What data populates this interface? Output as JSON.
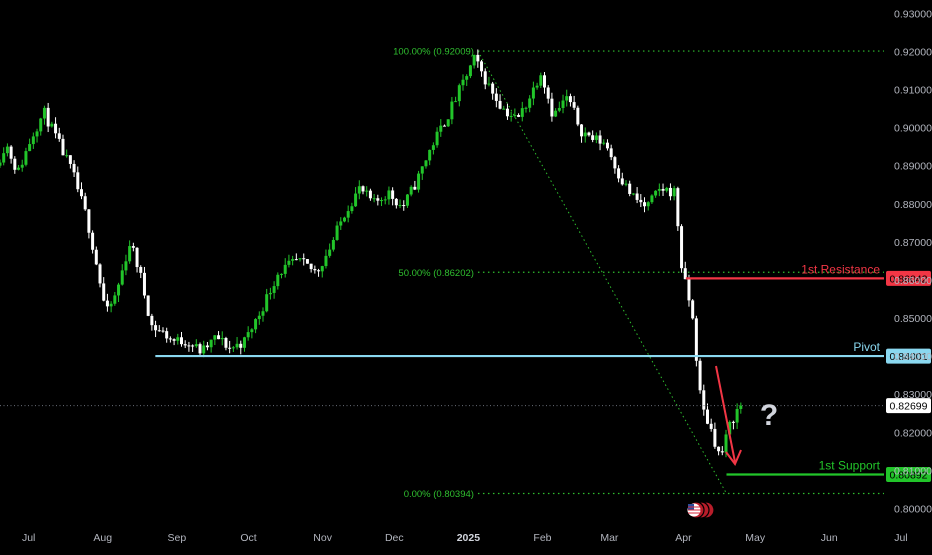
{
  "chart_data": {
    "type": "candlestick",
    "y_axis": {
      "ticks": [
        "0.93000",
        "0.92000",
        "0.91000",
        "0.90000",
        "0.89000",
        "0.88000",
        "0.87000",
        "0.86000",
        "0.85000",
        "0.84000",
        "0.83000",
        "0.82000",
        "0.81000",
        "0.80000"
      ],
      "range": [
        0.7975,
        0.9335
      ]
    },
    "x_axis": {
      "ticks": [
        {
          "label": "Jul",
          "day": 0
        },
        {
          "label": "Aug",
          "day": 31
        },
        {
          "label": "Sep",
          "day": 62
        },
        {
          "label": "Oct",
          "day": 92
        },
        {
          "label": "Nov",
          "day": 123
        },
        {
          "label": "Dec",
          "day": 153
        },
        {
          "label": "2025",
          "day": 184
        },
        {
          "label": "Feb",
          "day": 215
        },
        {
          "label": "Mar",
          "day": 243
        },
        {
          "label": "Apr",
          "day": 274
        },
        {
          "label": "May",
          "day": 304
        },
        {
          "label": "Jun",
          "day": 335
        },
        {
          "label": "Jul",
          "day": 365
        }
      ],
      "range": [
        -12,
        378
      ]
    },
    "price_path": [
      [
        -12,
        0.89
      ],
      [
        -8,
        0.896
      ],
      [
        -3,
        0.888
      ],
      [
        3,
        0.898
      ],
      [
        8,
        0.904
      ],
      [
        14,
        0.896
      ],
      [
        20,
        0.888
      ],
      [
        26,
        0.876
      ],
      [
        30,
        0.864
      ],
      [
        34,
        0.851
      ],
      [
        38,
        0.856
      ],
      [
        44,
        0.87
      ],
      [
        48,
        0.862
      ],
      [
        53,
        0.848
      ],
      [
        58,
        0.846
      ],
      [
        62,
        0.844
      ],
      [
        68,
        0.844
      ],
      [
        74,
        0.841
      ],
      [
        80,
        0.845
      ],
      [
        86,
        0.842
      ],
      [
        92,
        0.844
      ],
      [
        98,
        0.851
      ],
      [
        106,
        0.862
      ],
      [
        114,
        0.865
      ],
      [
        122,
        0.862
      ],
      [
        128,
        0.869
      ],
      [
        134,
        0.878
      ],
      [
        140,
        0.884
      ],
      [
        146,
        0.88
      ],
      [
        152,
        0.883
      ],
      [
        158,
        0.879
      ],
      [
        164,
        0.886
      ],
      [
        170,
        0.895
      ],
      [
        176,
        0.902
      ],
      [
        182,
        0.91
      ],
      [
        188,
        0.918
      ],
      [
        194,
        0.911
      ],
      [
        200,
        0.905
      ],
      [
        206,
        0.902
      ],
      [
        212,
        0.909
      ],
      [
        216,
        0.915
      ],
      [
        221,
        0.903
      ],
      [
        227,
        0.908
      ],
      [
        233,
        0.899
      ],
      [
        238,
        0.897
      ],
      [
        243,
        0.896
      ],
      [
        249,
        0.887
      ],
      [
        254,
        0.882
      ],
      [
        260,
        0.879
      ],
      [
        266,
        0.884
      ],
      [
        272,
        0.883
      ],
      [
        275,
        0.862
      ],
      [
        279,
        0.852
      ],
      [
        283,
        0.827
      ],
      [
        287,
        0.821
      ],
      [
        291,
        0.813
      ],
      [
        295,
        0.822
      ],
      [
        299,
        0.827
      ]
    ],
    "fib_levels": [
      {
        "label": "100.00% (0.92009)",
        "value": 0.92009
      },
      {
        "label": "50.00% (0.86202)",
        "value": 0.86202
      },
      {
        "label": "0.00% (0.80394)",
        "value": 0.80394
      }
    ],
    "levels": [
      {
        "name": "1st Resistance",
        "value": 0.86042,
        "value_label": "0.86042",
        "color": "#f23645"
      },
      {
        "name": "Pivot",
        "value": 0.84001,
        "value_label": "0.84001",
        "color": "#8ad8f0"
      },
      {
        "name": "1st Support",
        "value": 0.80892,
        "value_label": "0.80892",
        "color": "#22c52a"
      }
    ],
    "current_price": {
      "value": 0.82699,
      "label": "0.82699"
    },
    "annotation": "?",
    "colors": {
      "up": "#22c52a",
      "down": "#ffffff",
      "fib": "#2fbf2f",
      "background": "#000000",
      "axis_text": "#b2b5be"
    }
  }
}
